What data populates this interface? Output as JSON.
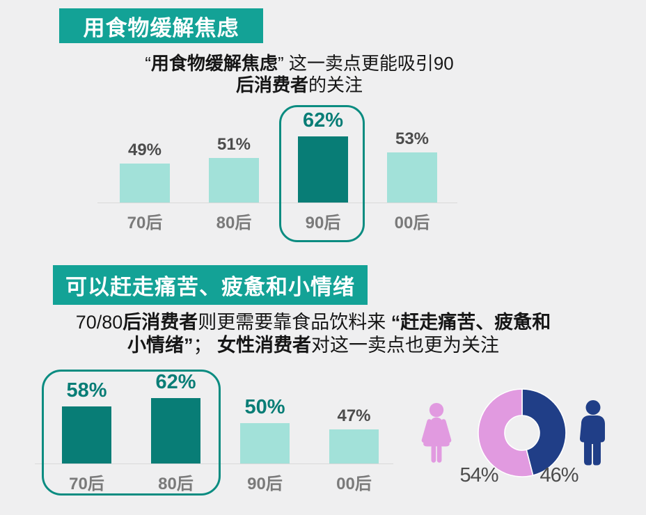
{
  "colors": {
    "background": "#efeff0",
    "header_teal": "#13a296",
    "bar_dark_teal": "#087d76",
    "bar_light_teal": "#a2e1d9",
    "highlight_outline_teal": "#0b8c81",
    "value_label_gray": "#4c4c4c",
    "category_label_gray": "#7a7a7a",
    "axis_line_gray": "#d9d9d9",
    "female_pink": "#e19ae0",
    "male_navy": "#203e87",
    "text_black": "#161616"
  },
  "icons": {
    "female": "woman-silhouette",
    "male": "man-silhouette"
  },
  "section1": {
    "header": "用食物缓解焦虑",
    "subtitle_lines": [
      [
        {
          "t": "“"
        },
        {
          "t": "用食物缓解焦虑",
          "b": 1
        },
        {
          "t": "” 这一卖点更能吸引90"
        }
      ],
      [
        {
          "t": "后消费者",
          "b": 1
        },
        {
          "t": "的关注"
        }
      ]
    ]
  },
  "section2": {
    "header": "可以赶走痛苦、疲惫和小情绪",
    "subtitle_lines": [
      [
        {
          "t": "70/80"
        },
        {
          "t": "后消费者",
          "b": 1
        },
        {
          "t": "则更需要靠食品饮料来 "
        },
        {
          "t": "“赶走痛苦、疲惫和",
          "b": 1
        }
      ],
      [
        {
          "t": "小情绪”",
          "b": 1
        },
        {
          "t": "； "
        },
        {
          "t": "女性消费者",
          "b": 1
        },
        {
          "t": "对这一卖点也更为关注"
        }
      ]
    ]
  },
  "chart_data": [
    {
      "type": "bar",
      "title": "用食物缓解焦虑",
      "categories": [
        "70后",
        "80后",
        "90后",
        "00后"
      ],
      "values": [
        49,
        51,
        62,
        53
      ],
      "unit": "%",
      "highlight_indices": [
        2
      ],
      "teal_label_indices": [
        2
      ],
      "highlighted_category": "90后",
      "axis_line": true,
      "value_labels_shown": true
    },
    {
      "type": "bar",
      "title": "可以赶走痛苦、疲惫和小情绪",
      "categories": [
        "70后",
        "80后",
        "90后",
        "00后"
      ],
      "values": [
        58,
        62,
        50,
        47
      ],
      "unit": "%",
      "highlight_indices": [
        0,
        1
      ],
      "teal_label_indices": [
        0,
        1,
        2
      ],
      "highlighted_categories": [
        "70后",
        "80后"
      ],
      "axis_line": true,
      "value_labels_shown": true
    },
    {
      "type": "pie",
      "title": "女性/男性占比",
      "labels": [
        "女性",
        "男性"
      ],
      "values": [
        54,
        46
      ],
      "unit": "%",
      "colors": [
        "#e19ae0",
        "#203e87"
      ],
      "donut": true,
      "start": "top-clockwise"
    }
  ]
}
